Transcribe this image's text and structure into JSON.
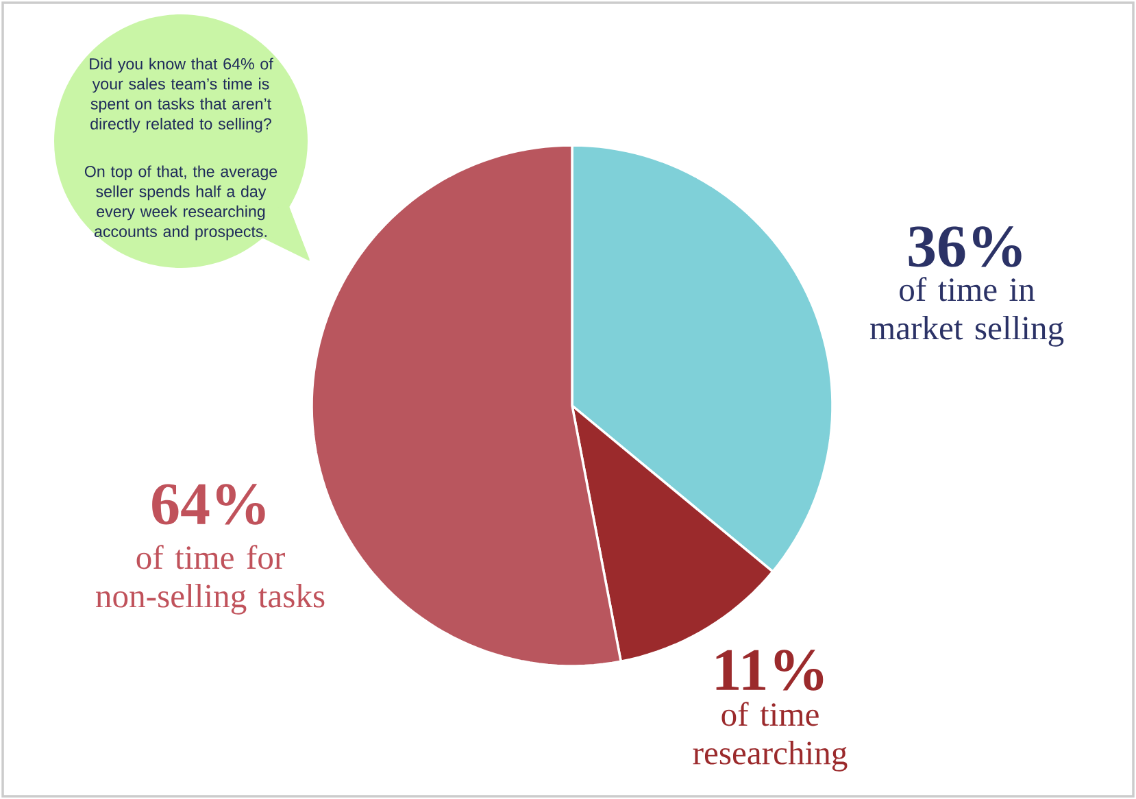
{
  "chart_data": {
    "type": "pie",
    "categories": [
      "of time in market selling",
      "of time researching",
      "of time for non-selling tasks"
    ],
    "values": [
      36,
      11,
      53
    ],
    "colors": [
      "#7fd0d8",
      "#9b2a2c",
      "#b9565e"
    ],
    "value_labels": [
      "36%",
      "11%",
      null
    ],
    "annotations": [
      "Did you know that 64% of your sales team’s time is spent on tasks that aren’t directly related to selling?",
      "On top of that, the average seller spends half a day every week researching accounts and prospects.",
      "64%"
    ]
  }
}
